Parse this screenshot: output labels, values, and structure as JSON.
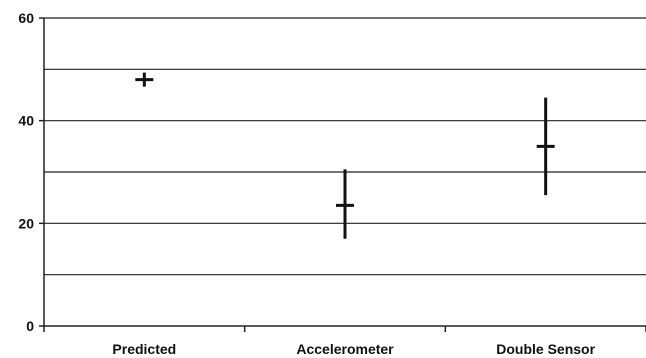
{
  "chart_data": {
    "type": "scatter",
    "title": "",
    "xlabel": "",
    "ylabel": "",
    "categories": [
      "Predicted",
      "Accelerometer",
      "Double Sensor"
    ],
    "ylim": [
      0,
      60
    ],
    "yticks": [
      0,
      20,
      40,
      60
    ],
    "grid": true,
    "gridlines": [
      10,
      20,
      30,
      40,
      50,
      60
    ],
    "series": [
      {
        "values": [
          48,
          23.5,
          35
        ],
        "error_low": [
          48,
          17,
          25.5
        ],
        "error_high": [
          48,
          30.5,
          44.5
        ]
      }
    ],
    "colors": {
      "marks": "#111111",
      "grid": "#222222",
      "axis": "#222222"
    }
  }
}
